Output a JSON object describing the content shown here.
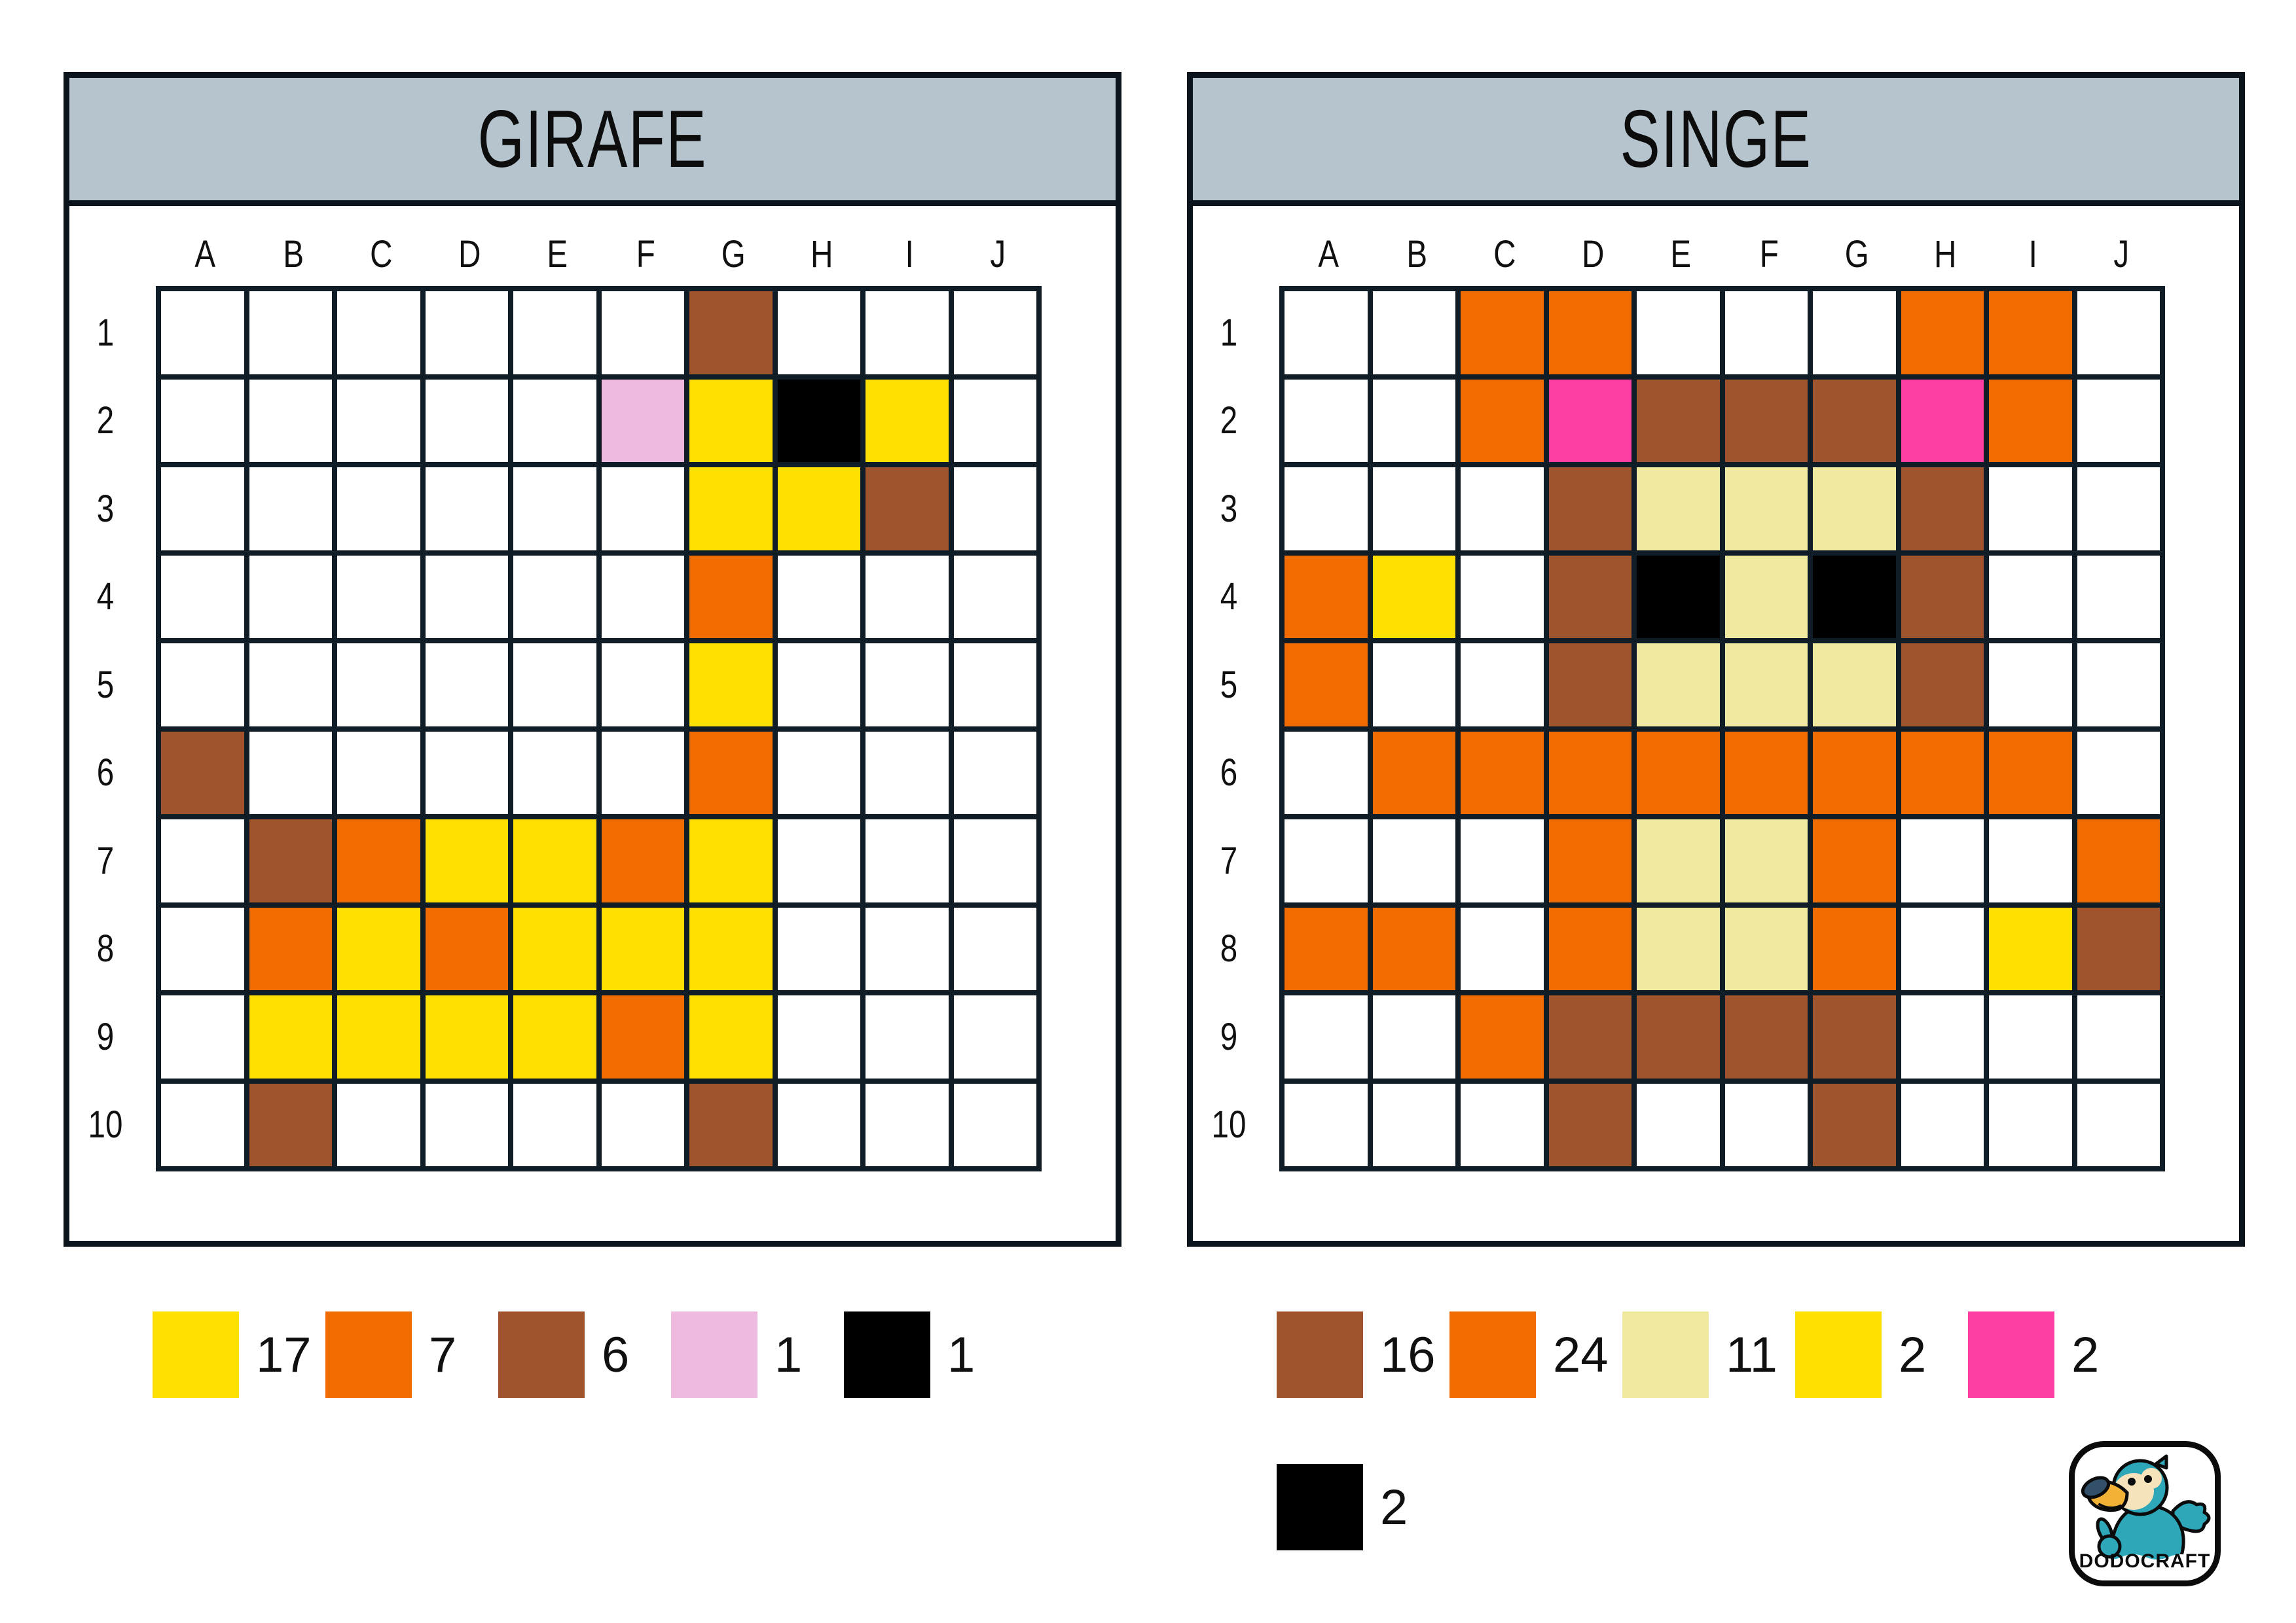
{
  "panels": [
    {
      "id": "girafe",
      "title": "GIRAFE",
      "column_labels": [
        "A",
        "B",
        "C",
        "D",
        "E",
        "F",
        "G",
        "H",
        "I",
        "J"
      ],
      "row_labels": [
        "1",
        "2",
        "3",
        "4",
        "5",
        "6",
        "7",
        "8",
        "9",
        "10"
      ],
      "grid": [
        [
          "",
          "",
          "",
          "",
          "",
          "",
          "B",
          "",
          "",
          ""
        ],
        [
          "",
          "",
          "",
          "",
          "",
          "P",
          "Y",
          "K",
          "Y",
          ""
        ],
        [
          "",
          "",
          "",
          "",
          "",
          "",
          "Y",
          "Y",
          "B",
          ""
        ],
        [
          "",
          "",
          "",
          "",
          "",
          "",
          "O",
          "",
          "",
          ""
        ],
        [
          "",
          "",
          "",
          "",
          "",
          "",
          "Y",
          "",
          "",
          ""
        ],
        [
          "B",
          "",
          "",
          "",
          "",
          "",
          "O",
          "",
          "",
          ""
        ],
        [
          "",
          "B",
          "O",
          "Y",
          "Y",
          "O",
          "Y",
          "",
          "",
          ""
        ],
        [
          "",
          "O",
          "Y",
          "O",
          "Y",
          "Y",
          "Y",
          "",
          "",
          ""
        ],
        [
          "",
          "Y",
          "Y",
          "Y",
          "Y",
          "O",
          "Y",
          "",
          "",
          ""
        ],
        [
          "",
          "B",
          "",
          "",
          "",
          "",
          "B",
          "",
          "",
          ""
        ]
      ],
      "legend_rows": [
        [
          {
            "color": "Y",
            "count": "17"
          },
          {
            "color": "O",
            "count": "7"
          },
          {
            "color": "B",
            "count": "6"
          },
          {
            "color": "P",
            "count": "1"
          },
          {
            "color": "K",
            "count": "1"
          }
        ]
      ]
    },
    {
      "id": "singe",
      "title": "SINGE",
      "column_labels": [
        "A",
        "B",
        "C",
        "D",
        "E",
        "F",
        "G",
        "H",
        "I",
        "J"
      ],
      "row_labels": [
        "1",
        "2",
        "3",
        "4",
        "5",
        "6",
        "7",
        "8",
        "9",
        "10"
      ],
      "grid": [
        [
          "",
          "",
          "O",
          "O",
          "",
          "",
          "",
          "O",
          "O",
          ""
        ],
        [
          "",
          "",
          "O",
          "M",
          "B",
          "B",
          "B",
          "M",
          "O",
          ""
        ],
        [
          "",
          "",
          "",
          "B",
          "C",
          "C",
          "C",
          "B",
          "",
          ""
        ],
        [
          "O",
          "Y",
          "",
          "B",
          "K",
          "C",
          "K",
          "B",
          "",
          ""
        ],
        [
          "O",
          "",
          "",
          "B",
          "C",
          "C",
          "C",
          "B",
          "",
          ""
        ],
        [
          "",
          "O",
          "O",
          "O",
          "O",
          "O",
          "O",
          "O",
          "O",
          ""
        ],
        [
          "",
          "",
          "",
          "O",
          "C",
          "C",
          "O",
          "",
          "",
          "O"
        ],
        [
          "O",
          "O",
          "",
          "O",
          "C",
          "C",
          "O",
          "",
          "Y",
          "B"
        ],
        [
          "",
          "",
          "O",
          "B",
          "B",
          "B",
          "B",
          "",
          "",
          ""
        ],
        [
          "",
          "",
          "",
          "B",
          "",
          "",
          "B",
          "",
          "",
          ""
        ]
      ],
      "legend_rows": [
        [
          {
            "color": "B",
            "count": "16"
          },
          {
            "color": "O",
            "count": "24"
          },
          {
            "color": "C",
            "count": "11"
          },
          {
            "color": "Y",
            "count": "2"
          },
          {
            "color": "M",
            "count": "2"
          }
        ],
        [
          {
            "color": "K",
            "count": "2"
          }
        ]
      ]
    }
  ],
  "palette": {
    "Y": "#FFE000",
    "O": "#F06C00",
    "B": "#A0542E",
    "P": "#EFBAE0",
    "M": "#FC3EA2",
    "C": "#F0E9A0",
    "K": "#000000",
    "": "#FFFFFF"
  },
  "color_names": {
    "Y": "yellow",
    "O": "orange",
    "B": "brown",
    "P": "light-pink",
    "M": "hot-pink",
    "C": "cream",
    "K": "black"
  },
  "colors": {
    "header_bg": "#B6C4CE",
    "grid_line": "#101C26",
    "panel_border": "#0B141B",
    "page_bg": "#FFFFFF",
    "logo_teal": "#2EA7B9",
    "logo_face": "#F6E3BC",
    "logo_beak_yellow": "#F2B236",
    "logo_beak_navy": "#33506B"
  },
  "logo": {
    "brand": "DODOCRAFT"
  }
}
